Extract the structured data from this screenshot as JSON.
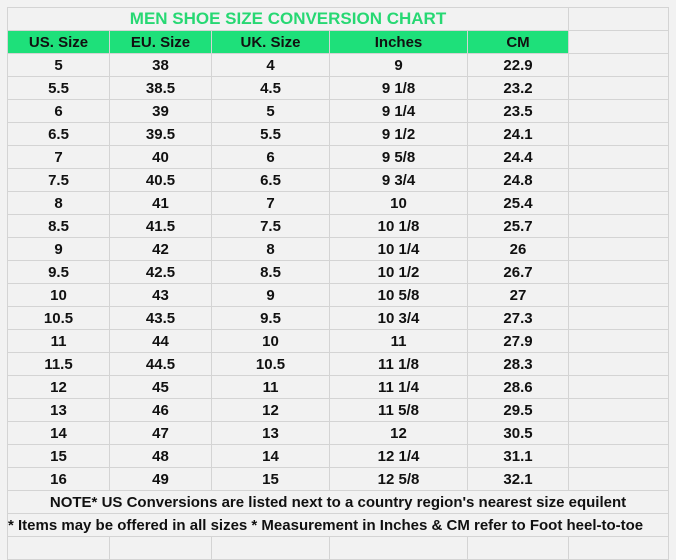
{
  "title": "MEN SHOE SIZE CONVERSION CHART",
  "headers": [
    "US. Size",
    "EU. Size",
    "UK. Size",
    "Inches",
    "CM"
  ],
  "rows": [
    [
      "5",
      "38",
      "4",
      "9",
      "22.9"
    ],
    [
      "5.5",
      "38.5",
      "4.5",
      "9 1/8",
      "23.2"
    ],
    [
      "6",
      "39",
      "5",
      "9 1/4",
      "23.5"
    ],
    [
      "6.5",
      "39.5",
      "5.5",
      "9 1/2",
      "24.1"
    ],
    [
      "7",
      "40",
      "6",
      "9 5/8",
      "24.4"
    ],
    [
      "7.5",
      "40.5",
      "6.5",
      "9 3/4",
      "24.8"
    ],
    [
      "8",
      "41",
      "7",
      "10",
      "25.4"
    ],
    [
      "8.5",
      "41.5",
      "7.5",
      "10 1/8",
      "25.7"
    ],
    [
      "9",
      "42",
      "8",
      "10 1/4",
      "26"
    ],
    [
      "9.5",
      "42.5",
      "8.5",
      "10 1/2",
      "26.7"
    ],
    [
      "10",
      "43",
      "9",
      "10 5/8",
      "27"
    ],
    [
      "10.5",
      "43.5",
      "9.5",
      "10 3/4",
      "27.3"
    ],
    [
      "11",
      "44",
      "10",
      "11",
      "27.9"
    ],
    [
      "11.5",
      "44.5",
      "10.5",
      "11 1/8",
      "28.3"
    ],
    [
      "12",
      "45",
      "11",
      "11 1/4",
      "28.6"
    ],
    [
      "13",
      "46",
      "12",
      "11 5/8",
      "29.5"
    ],
    [
      "14",
      "47",
      "13",
      "12",
      "30.5"
    ],
    [
      "15",
      "48",
      "14",
      "12 1/4",
      "31.1"
    ],
    [
      "16",
      "49",
      "15",
      "12 5/8",
      "32.1"
    ]
  ],
  "note1": "NOTE* US Conversions are listed next to a country region's nearest size equilent",
  "note2": "* Items may be offered in all sizes * Measurement in Inches & CM refer to Foot heel-to-toe",
  "colors": {
    "header_bg": "#1ee07a",
    "title_text": "#27d873"
  }
}
